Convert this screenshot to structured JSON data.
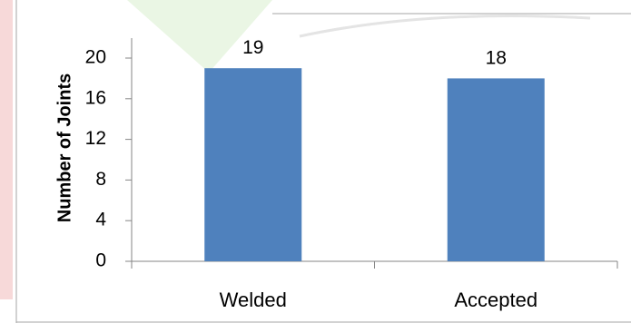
{
  "chart_data": {
    "type": "bar",
    "categories": [
      "Welded",
      "Accepted"
    ],
    "values": [
      19,
      18
    ],
    "data_labels": [
      "19",
      "18"
    ],
    "title": "",
    "xlabel": "",
    "ylabel": "Number of Joints",
    "ylim": [
      0,
      20
    ],
    "yticks": [
      0,
      4,
      8,
      12,
      16,
      20
    ],
    "ytick_labels": [
      "0",
      "4",
      "8",
      "12",
      "16",
      "20"
    ],
    "grid": false,
    "legend": "none",
    "bar_color": "#4F81BD",
    "axis_color": "#868686"
  }
}
